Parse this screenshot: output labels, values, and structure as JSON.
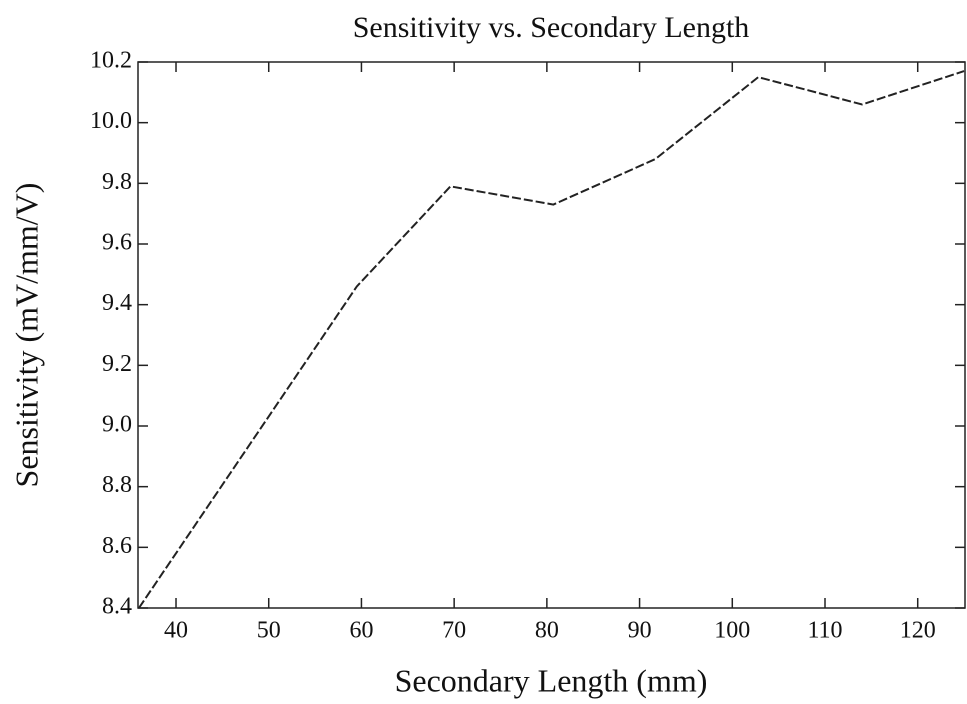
{
  "chart_data": {
    "type": "line",
    "title": "Sensitivity vs. Secondary Length",
    "x_label": "Secondary Length (mm)",
    "y_label": "Sensitivity (mV/mm/V)",
    "series": [
      {
        "name": "Sensitivity",
        "color": "#222222",
        "dashed": true,
        "x": [
          36,
          59.5,
          69.6,
          80.7,
          91.7,
          102.8,
          114,
          125
        ],
        "values": [
          8.4,
          9.46,
          9.79,
          9.73,
          9.88,
          10.15,
          10.06,
          10.17
        ]
      }
    ],
    "xlim": [
      35.9,
      125.1
    ],
    "xticks": [
      40,
      50,
      60,
      70,
      80,
      90,
      100,
      110,
      120
    ],
    "ylim": [
      8.4,
      10.2
    ],
    "yticks": [
      8.4,
      8.6,
      8.8,
      {
        "value": 9.0,
        "label": "9.0"
      },
      9.2,
      9.4,
      9.6,
      9.8,
      {
        "value": 10.0,
        "label": "10.0"
      },
      10.2
    ],
    "grid": false
  }
}
